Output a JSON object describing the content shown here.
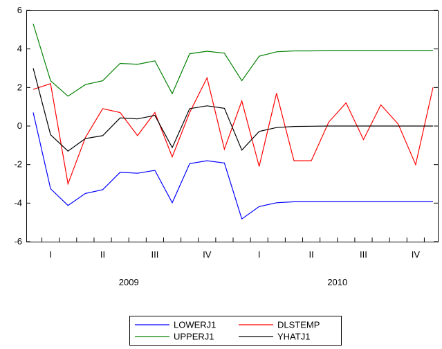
{
  "chart_data": {
    "type": "line",
    "title": "",
    "xlabel": "",
    "ylabel": "",
    "ylim": [
      -6,
      6
    ],
    "y_ticks": [
      -6,
      -4,
      -2,
      0,
      2,
      4,
      6
    ],
    "x": [
      "2009M01",
      "2009M02",
      "2009M03",
      "2009M04",
      "2009M05",
      "2009M06",
      "2009M07",
      "2009M08",
      "2009M09",
      "2009M10",
      "2009M11",
      "2009M12",
      "2010M01",
      "2010M02",
      "2010M03",
      "2010M04",
      "2010M05",
      "2010M06",
      "2010M07",
      "2010M08",
      "2010M09",
      "2010M10",
      "2010M11",
      "2010M12"
    ],
    "quarter_labels": [
      "I",
      "II",
      "III",
      "IV",
      "I",
      "II",
      "III",
      "IV"
    ],
    "year_labels": [
      "2009",
      "2010"
    ],
    "grid": false,
    "legend_position": "bottom-center",
    "series": [
      {
        "name": "LOWERJ1",
        "color": "#0000ff",
        "values": [
          0.7,
          -3.25,
          -4.12,
          -3.5,
          -3.3,
          -2.4,
          -2.45,
          -2.3,
          -3.98,
          -1.95,
          -1.8,
          -1.92,
          -4.82,
          -4.18,
          -3.98,
          -3.93,
          -3.93,
          -3.92,
          -3.92,
          -3.92,
          -3.92,
          -3.92,
          -3.92,
          -3.92
        ]
      },
      {
        "name": "DLSTEMP",
        "color": "#ff0000",
        "values": [
          1.9,
          2.2,
          -3.0,
          -0.6,
          0.9,
          0.7,
          -0.5,
          0.7,
          -1.6,
          0.7,
          2.5,
          -1.2,
          1.3,
          -2.1,
          1.7,
          -1.8,
          -1.8,
          0.2,
          1.2,
          -0.7,
          1.1,
          0.1,
          -2.0,
          2.0
        ]
      },
      {
        "name": "UPPERJ1",
        "color": "#008000",
        "values": [
          5.3,
          2.35,
          1.55,
          2.15,
          2.35,
          3.25,
          3.2,
          3.38,
          1.68,
          3.75,
          3.88,
          3.78,
          2.35,
          3.62,
          3.85,
          3.9,
          3.9,
          3.92,
          3.92,
          3.92,
          3.92,
          3.92,
          3.92,
          3.92
        ]
      },
      {
        "name": "YHATJ1",
        "color": "#000000",
        "values": [
          3.0,
          -0.45,
          -1.3,
          -0.65,
          -0.5,
          0.42,
          0.37,
          0.55,
          -1.12,
          0.9,
          1.05,
          0.92,
          -1.25,
          -0.28,
          -0.08,
          -0.02,
          -0.01,
          0.0,
          0.0,
          0.0,
          0.0,
          0.0,
          0.0,
          0.0
        ]
      }
    ]
  }
}
